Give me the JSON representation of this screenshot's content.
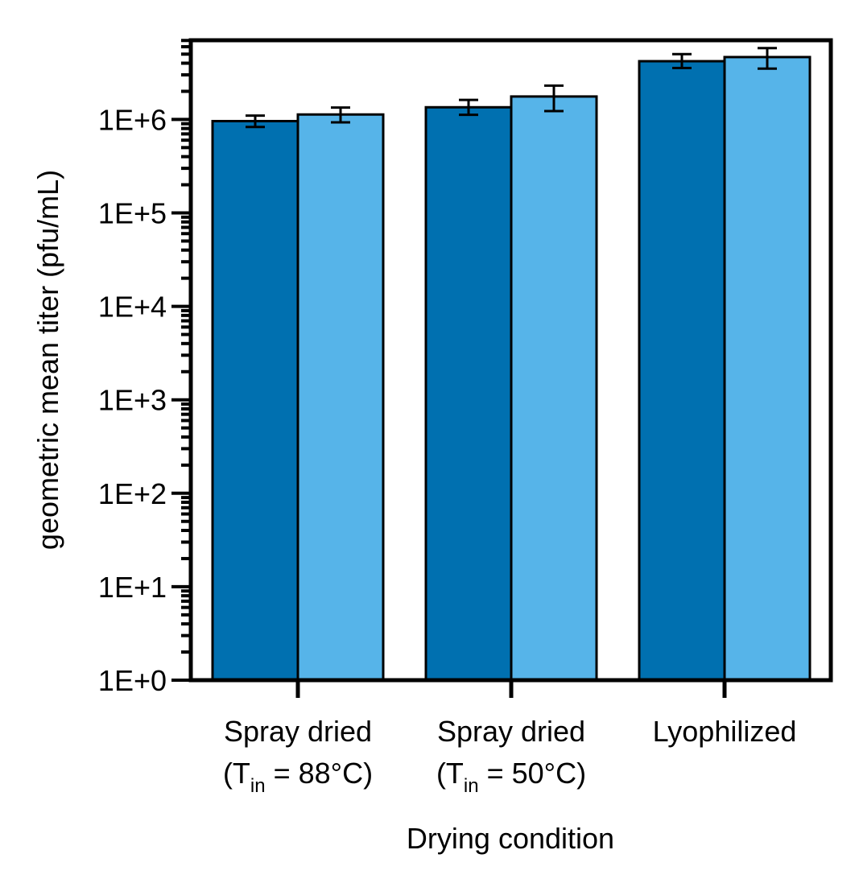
{
  "chart_data": {
    "type": "bar",
    "title": "",
    "xlabel": "Drying condition",
    "ylabel": "geometric mean titer (pfu/mL)",
    "yscale": "log",
    "ylim": [
      1,
      10000000
    ],
    "grid": false,
    "legend": "none",
    "yticks": [
      {
        "value": 1,
        "label": "1E+0"
      },
      {
        "value": 10,
        "label": "1E+1"
      },
      {
        "value": 100,
        "label": "1E+2"
      },
      {
        "value": 1000,
        "label": "1E+3"
      },
      {
        "value": 10000,
        "label": "1E+4"
      },
      {
        "value": 100000,
        "label": "1E+5"
      },
      {
        "value": 1000000,
        "label": "1E+6"
      }
    ],
    "categories": [
      {
        "line1": "Spray dried",
        "line2_pre": "(T",
        "line2_sub": "in",
        "line2_post": " = 88°C)"
      },
      {
        "line1": "Spray dried",
        "line2_pre": "(T",
        "line2_sub": "in",
        "line2_post": " = 50°C)"
      },
      {
        "line1": "Lyophilized",
        "line2_pre": "",
        "line2_sub": "",
        "line2_post": ""
      }
    ],
    "series": [
      {
        "color": "#0070b0",
        "values": [
          960000,
          1350000,
          4200000
        ],
        "err_low": [
          830000,
          1120000,
          3550000
        ],
        "err_high": [
          1100000,
          1620000,
          5000000
        ]
      },
      {
        "color": "#56b4e9",
        "values": [
          1130000,
          1760000,
          4650000
        ],
        "err_low": [
          930000,
          1230000,
          3500000
        ],
        "err_high": [
          1340000,
          2300000,
          5800000
        ]
      }
    ]
  }
}
